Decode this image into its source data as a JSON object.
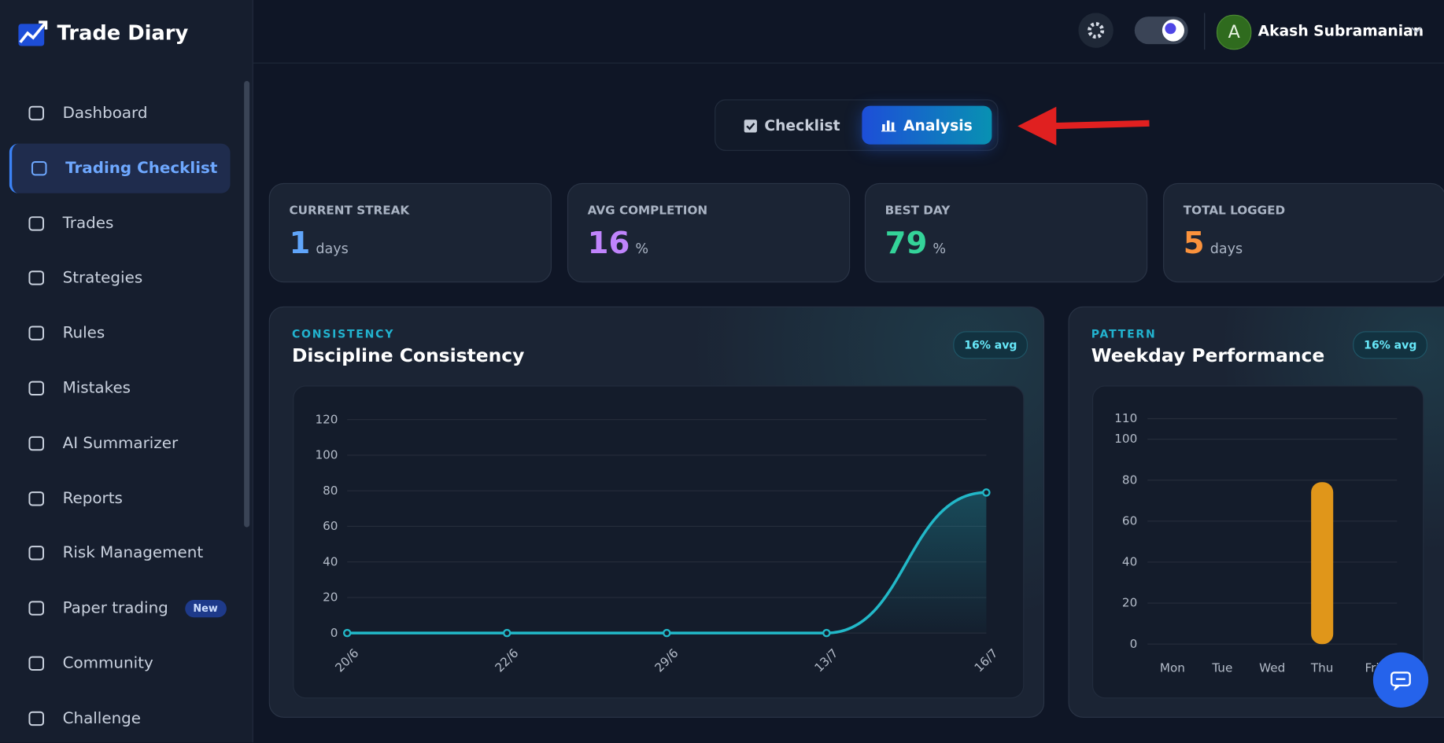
{
  "brand": "Trade Diary",
  "nav": {
    "items": [
      {
        "label": "Dashboard"
      },
      {
        "label": "Trading Checklist"
      },
      {
        "label": "Trades"
      },
      {
        "label": "Strategies"
      },
      {
        "label": "Rules"
      },
      {
        "label": "Mistakes"
      },
      {
        "label": "AI Summarizer"
      },
      {
        "label": "Reports"
      },
      {
        "label": "Risk Management"
      },
      {
        "label": "Paper trading",
        "badge": "New"
      },
      {
        "label": "Community"
      },
      {
        "label": "Challenge"
      }
    ],
    "active": 1
  },
  "header": {
    "avatar": "A",
    "user": "Akash Subramanian"
  },
  "tabs": {
    "items": [
      "Checklist",
      "Analysis"
    ],
    "active": 1
  },
  "stats": [
    {
      "label": "CURRENT STREAK",
      "value": 1,
      "unit": "days"
    },
    {
      "label": "AVG COMPLETION",
      "value": 16,
      "unit": "%"
    },
    {
      "label": "BEST DAY",
      "value": 79,
      "unit": "%"
    },
    {
      "label": "TOTAL LOGGED",
      "value": 5,
      "unit": "days"
    }
  ],
  "cards": [
    {
      "eyebrow": "CONSISTENCY",
      "title": "Discipline Consistency",
      "badge": "16% avg",
      "chart_data": {
        "type": "line",
        "categories": [
          "20/6",
          "22/6",
          "29/6",
          "13/7",
          "16/7"
        ],
        "values": [
          0,
          0,
          0,
          0,
          79
        ],
        "color": "#22b8c8",
        "ylim": [
          0,
          120
        ],
        "yticks": [
          0,
          20,
          40,
          60,
          80,
          100,
          120
        ],
        "grid": true
      }
    },
    {
      "eyebrow": "PATTERN",
      "title": "Weekday Performance",
      "badge": "16% avg",
      "chart_data": {
        "type": "bar",
        "categories": [
          "Mon",
          "Tue",
          "Wed",
          "Thu",
          "Fri"
        ],
        "values": [
          0,
          0,
          0,
          79,
          0
        ],
        "color": "#e0961a",
        "ylim": [
          0,
          110
        ],
        "yticks": [
          0,
          20,
          40,
          60,
          80,
          100,
          110
        ],
        "grid": true
      }
    }
  ]
}
